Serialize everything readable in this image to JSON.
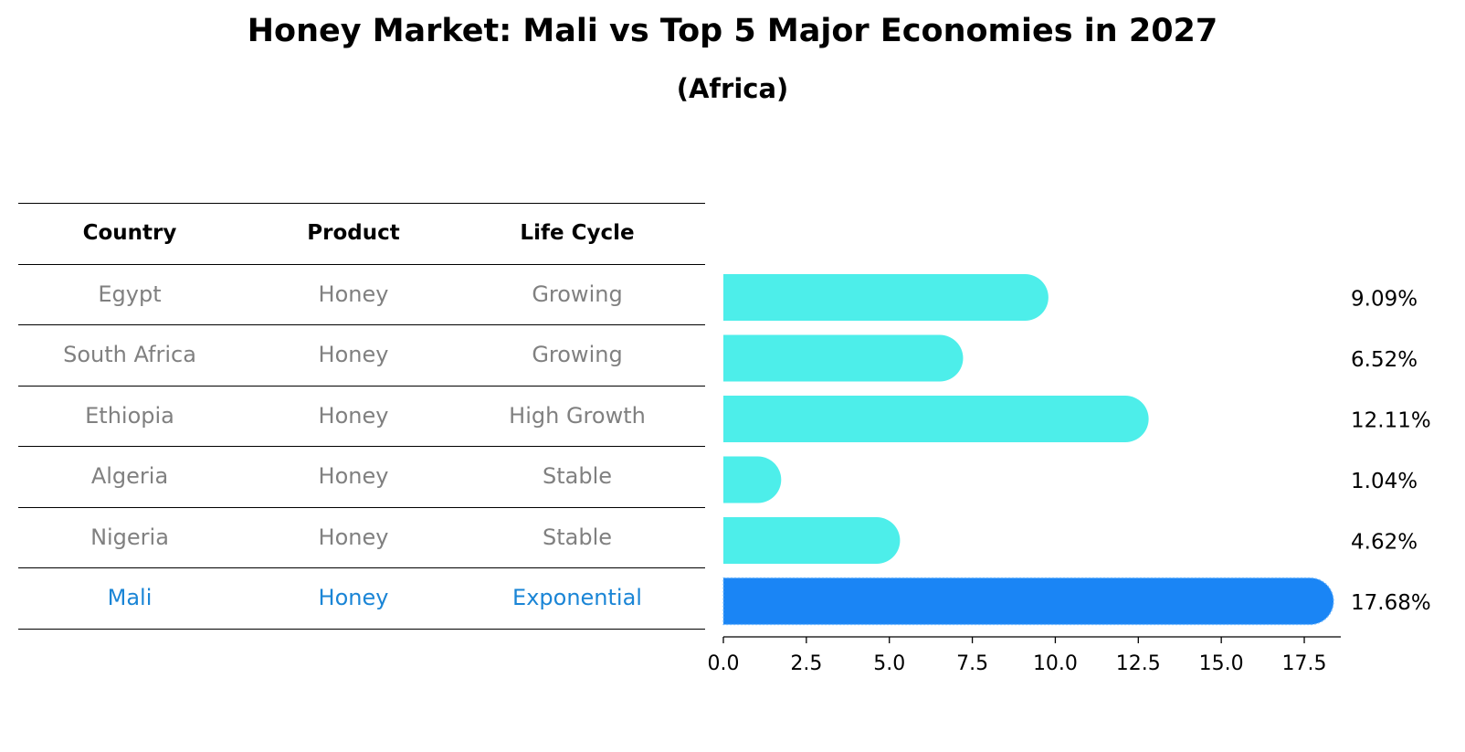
{
  "title": "Honey Market: Mali vs Top 5 Major Economies in 2027",
  "subtitle": "(Africa)",
  "table": {
    "headers": [
      "Country",
      "Product",
      "Life Cycle"
    ],
    "rows": [
      {
        "country": "Egypt",
        "product": "Honey",
        "life_cycle": "Growing",
        "highlight": false
      },
      {
        "country": "South Africa",
        "product": "Honey",
        "life_cycle": "Growing",
        "highlight": false
      },
      {
        "country": "Ethiopia",
        "product": "Honey",
        "life_cycle": "High Growth",
        "highlight": false
      },
      {
        "country": "Algeria",
        "product": "Honey",
        "life_cycle": "Stable",
        "highlight": false
      },
      {
        "country": "Nigeria",
        "product": "Honey",
        "life_cycle": "Stable",
        "highlight": false
      },
      {
        "country": "Mali",
        "product": "Honey",
        "life_cycle": "Exponential",
        "highlight": true
      }
    ]
  },
  "colors": {
    "bar": "#4deeea",
    "highlight_bar": "#1a85f5",
    "highlight_text": "#1a85d6",
    "dim_text": "#808080"
  },
  "chart_data": {
    "type": "bar",
    "orientation": "horizontal",
    "title": "Honey Market: Mali vs Top 5 Major Economies in 2027",
    "subtitle": "(Africa)",
    "categories": [
      "Egypt",
      "South Africa",
      "Ethiopia",
      "Algeria",
      "Nigeria",
      "Mali"
    ],
    "values": [
      9.09,
      6.52,
      12.11,
      1.04,
      4.62,
      17.68
    ],
    "value_labels": [
      "9.09%",
      "6.52%",
      "12.11%",
      "1.04%",
      "4.62%",
      "17.68%"
    ],
    "highlight": "Mali",
    "xlim": [
      0,
      18.6
    ],
    "xticks": [
      0.0,
      2.5,
      5.0,
      7.5,
      10.0,
      12.5,
      15.0,
      17.5
    ],
    "xtick_labels": [
      "0.0",
      "2.5",
      "5.0",
      "7.5",
      "10.0",
      "12.5",
      "15.0",
      "17.5"
    ],
    "xlabel": "",
    "ylabel": "",
    "grid": false
  }
}
